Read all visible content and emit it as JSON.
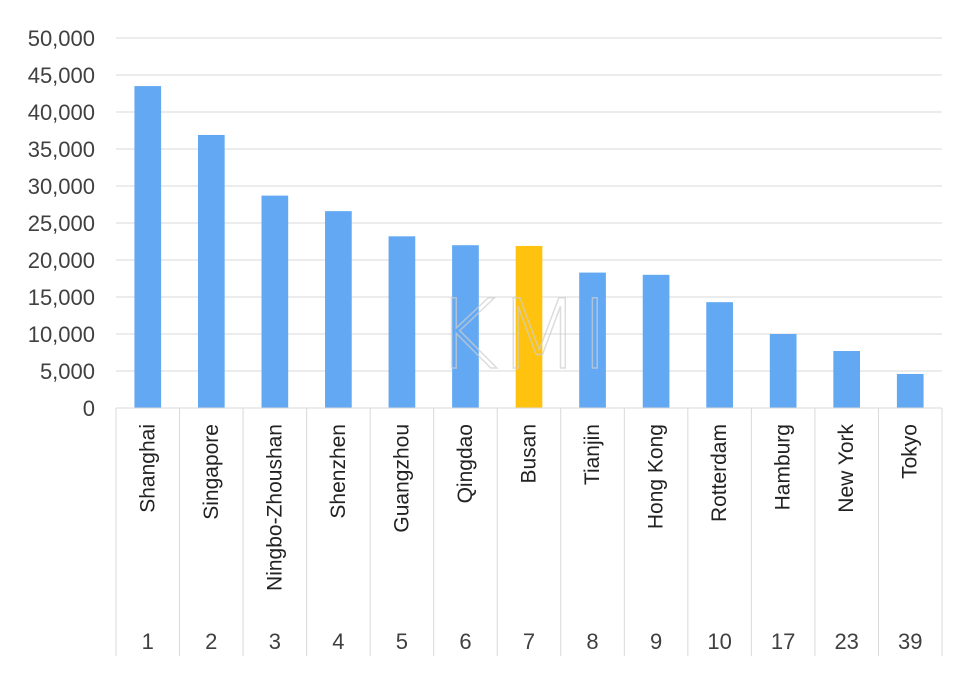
{
  "chart_data": {
    "type": "bar",
    "title": "",
    "xlabel": "",
    "ylabel": "",
    "ylim": [
      0,
      50000
    ],
    "yticks": [
      0,
      5000,
      10000,
      15000,
      20000,
      25000,
      30000,
      35000,
      40000,
      45000,
      50000
    ],
    "ytick_labels": [
      "0",
      "5,000",
      "10,000",
      "15,000",
      "20,000",
      "25,000",
      "30,000",
      "35,000",
      "40,000",
      "45,000",
      "50,000"
    ],
    "grid": true,
    "legend": "none",
    "categories": [
      "Shanghai",
      "Singapore",
      "Ningbo-Zhoushan",
      "Shenzhen",
      "Guangzhou",
      "Qingdao",
      "Busan",
      "Tianjin",
      "Hong Kong",
      "Rotterdam",
      "Hamburg",
      "New York",
      "Tokyo"
    ],
    "ranks": [
      "1",
      "2",
      "3",
      "4",
      "5",
      "6",
      "7",
      "8",
      "9",
      "10",
      "17",
      "23",
      "39"
    ],
    "values": [
      43500,
      36900,
      28700,
      26600,
      23200,
      22000,
      21900,
      18300,
      18000,
      14300,
      10000,
      7700,
      4600
    ],
    "highlight_index": 6,
    "colors": {
      "bar": "#62a8f2",
      "highlight": "#ffc20e",
      "grid": "#d9d9d9"
    }
  },
  "watermark": "KMI"
}
